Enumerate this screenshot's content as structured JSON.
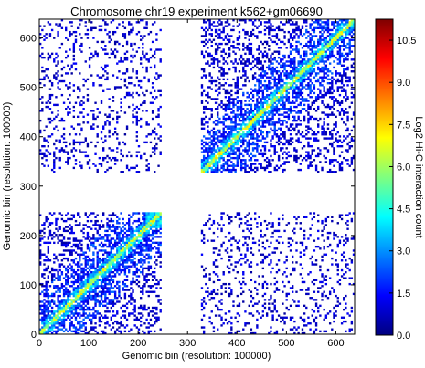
{
  "chart_data": {
    "type": "heatmap",
    "title": "Chromosome chr19 experiment k562+gm06690",
    "xlabel": "Genomic bin (resolution: 100000)",
    "ylabel": "Genomic bin (resolution: 100000)",
    "xlim": [
      0,
      638
    ],
    "ylim": [
      0,
      638
    ],
    "x_ticks": [
      0,
      100,
      200,
      300,
      400,
      500,
      600
    ],
    "y_ticks": [
      0,
      100,
      200,
      300,
      400,
      500,
      600
    ],
    "missing_bins": [
      [
        246,
        328
      ]
    ],
    "diagonal_block": [
      215,
      246
    ],
    "grid": false,
    "colorbar": {
      "label": "Log2 Hi-C interaction count",
      "range": [
        0,
        11.25
      ],
      "ticks": [
        0.0,
        1.5,
        3.0,
        4.5,
        6.0,
        7.5,
        9.0,
        10.5
      ],
      "tick_labels": [
        "0.0",
        "1.5",
        "3.0",
        "4.5",
        "6.0",
        "7.5",
        "9.0",
        "10.5"
      ],
      "colormap": "jet",
      "colormap_colors": [
        "#00007f",
        "#0000ff",
        "#007fff",
        "#00ffff",
        "#7fff7f",
        "#ffff00",
        "#ff7f00",
        "#ff0000",
        "#7f0000"
      ]
    }
  }
}
